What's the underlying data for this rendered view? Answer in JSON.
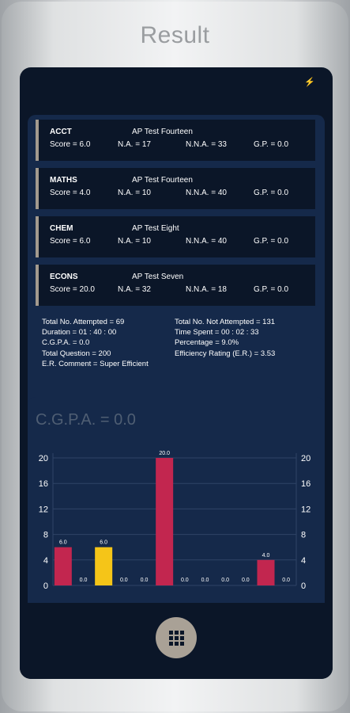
{
  "page_title": "Result",
  "status_icon": "battery-charging-icon",
  "subjects": [
    {
      "name": "ACCT",
      "test": "AP Test Fourteen",
      "score": "Score = 6.0",
      "na": "N.A. = 17",
      "nna": "N.N.A. = 33",
      "gp": "G.P. = 0.0"
    },
    {
      "name": "MATHS",
      "test": "AP Test Fourteen",
      "score": "Score = 4.0",
      "na": "N.A. = 10",
      "nna": "N.N.A. = 40",
      "gp": "G.P. = 0.0"
    },
    {
      "name": "CHEM",
      "test": "AP Test Eight",
      "score": "Score = 6.0",
      "na": "N.A. = 10",
      "nna": "N.N.A. = 40",
      "gp": "G.P. = 0.0"
    },
    {
      "name": "ECONS",
      "test": "AP Test Seven",
      "score": "Score = 20.0",
      "na": "N.A. = 32",
      "nna": "N.N.A. = 18",
      "gp": "G.P. = 0.0"
    }
  ],
  "stats": {
    "total_attempted": "Total No. Attempted = 69",
    "duration": "Duration = 01 : 40 : 00",
    "cgpa": "C.G.P.A. = 0.0",
    "total_question": "Total Question = 200",
    "er_comment": "E.R. Comment = Super Efficient",
    "total_not_attempted": "Total No. Not Attempted = 131",
    "time_spent": "Time Spent = 00 : 02 : 33",
    "percentage": "Percentage = 9.0%",
    "efficiency": "Efficiency Rating (E.R.) = 3.53"
  },
  "chart_heading": "C.G.P.A. = 0.0",
  "chart_data": {
    "type": "bar",
    "ylim": [
      0,
      20
    ],
    "yticks": [
      0,
      4,
      8,
      12,
      16,
      20
    ],
    "grid": true,
    "values": [
      6.0,
      0.0,
      6.0,
      0.0,
      0.0,
      20.0,
      0.0,
      0.0,
      0.0,
      0.0,
      4.0,
      0.0
    ],
    "labels": [
      "6.0",
      "0.0",
      "6.0",
      "0.0",
      "0.0",
      "20.0",
      "0.0",
      "0.0",
      "0.0",
      "0.0",
      "4.0",
      "0.0"
    ],
    "colors": [
      "#c2264f",
      "#c2264f",
      "#f5c518",
      "#c2264f",
      "#c2264f",
      "#c2264f",
      "#c2264f",
      "#c2264f",
      "#c2264f",
      "#c2264f",
      "#c2264f",
      "#c2264f"
    ]
  },
  "menu_icon": "grid-icon"
}
